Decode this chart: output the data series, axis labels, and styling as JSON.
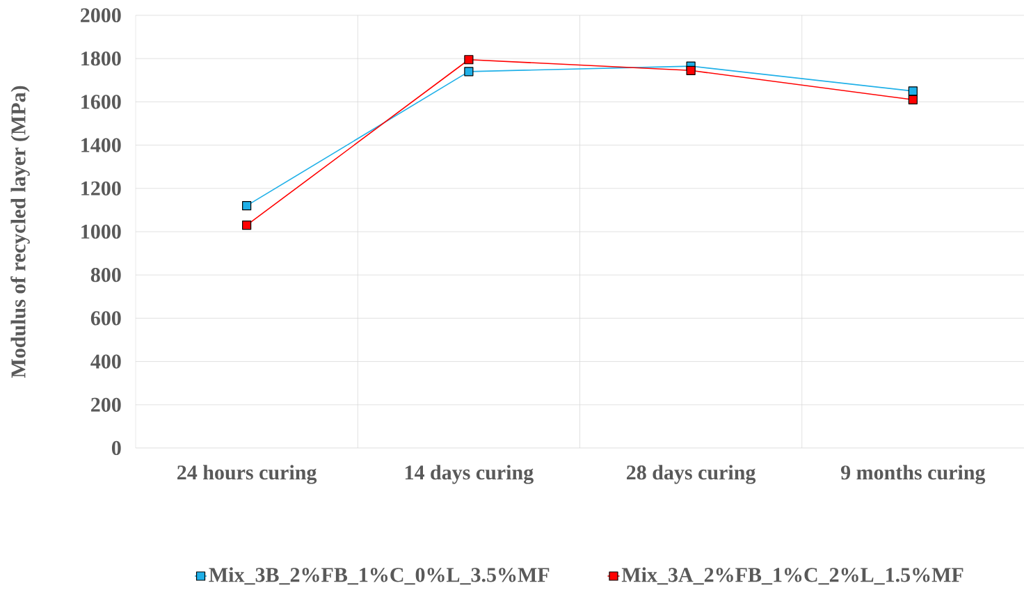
{
  "chart_data": {
    "type": "line",
    "ylabel": "Modulus of recycled layer (MPa)",
    "categories": [
      "24 hours curing",
      "14 days curing",
      "28 days curing",
      "9 months curing"
    ],
    "series": [
      {
        "name": "Mix_3B_2%FB_1%C_0%L_3.5%MF",
        "color": "#1fb0e8",
        "values": [
          1120,
          1740,
          1765,
          1650
        ]
      },
      {
        "name": "Mix_3A_2%FB_1%C_2%L_1.5%MF",
        "color": "#ff0000",
        "values": [
          1030,
          1795,
          1745,
          1610
        ]
      }
    ],
    "ylim": [
      0,
      2000
    ],
    "yticks": [
      0,
      200,
      400,
      600,
      800,
      1000,
      1200,
      1400,
      1600,
      1800,
      2000
    ],
    "grid": true,
    "legend": "bottom",
    "marker": "square",
    "line_style": "solid"
  }
}
